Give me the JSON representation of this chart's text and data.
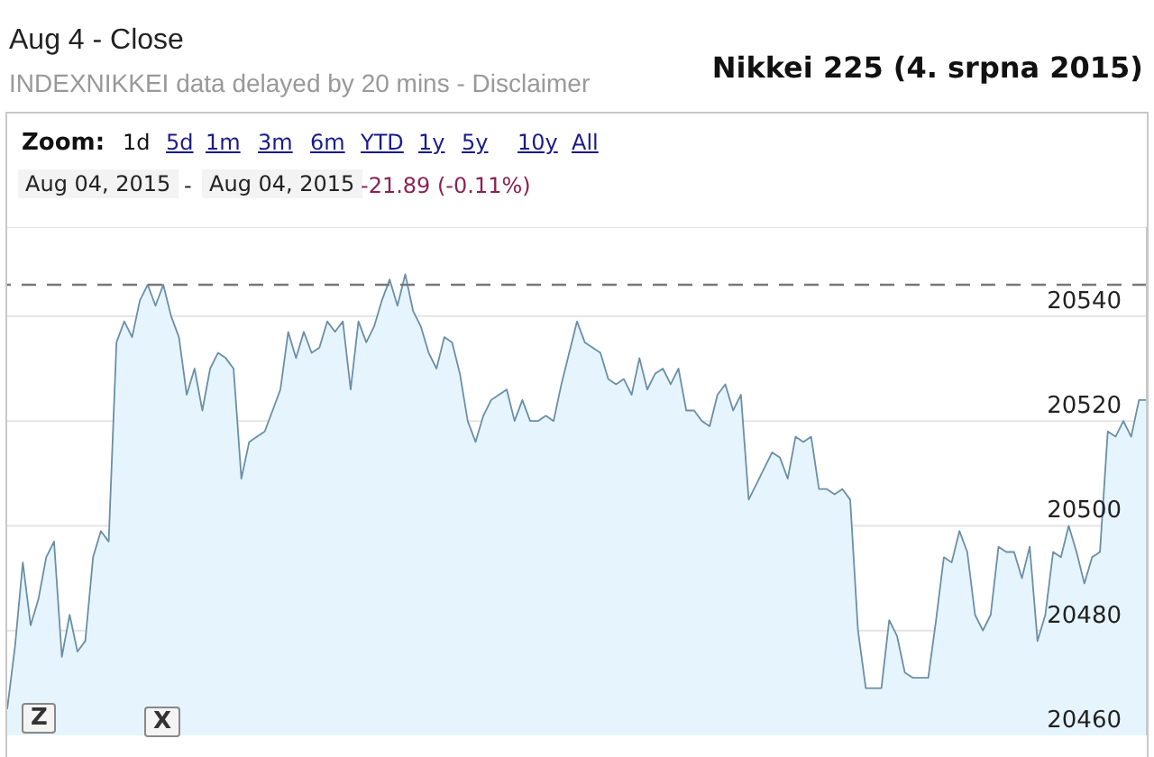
{
  "chart_data": {
    "type": "area",
    "title": "Nikkei 225 (4. srpna 2015)",
    "annotations": [
      "Aug 4 - Close",
      "INDEXNIKKEI data delayed by 20 mins - Disclaimer",
      "Zoom:",
      "1d",
      "5d",
      "1m",
      "3m",
      "6m",
      "YTD",
      "1y",
      "5y",
      "10y",
      "All",
      "Aug 04, 2015",
      "-",
      "Aug 04, 2015",
      "-21.89 (-0.11%)",
      "Z",
      "X"
    ],
    "series": [
      {
        "color": "#6a8fa8",
        "values": [
          20465,
          20477,
          20493,
          20481,
          20486,
          20494,
          20497,
          20475,
          20483,
          20476,
          20478,
          20494,
          20499,
          20497,
          20535,
          20539,
          20536,
          20543,
          20546,
          20542,
          20546,
          20540,
          20536,
          20525,
          20530,
          20522,
          20530,
          20533,
          20532,
          20530,
          20509,
          20516,
          20517,
          20518,
          20522,
          20526,
          20537,
          20532,
          20537,
          20533,
          20534,
          20539,
          20537,
          20539,
          20526,
          20539,
          20535,
          20538,
          20543,
          20547,
          20542,
          20548,
          20541,
          20538,
          20533,
          20530,
          20536,
          20535,
          20529,
          20520,
          20516,
          20521,
          20524,
          20525,
          20526,
          20520,
          20524,
          20520,
          20520,
          20521,
          20520,
          20527,
          20533,
          20539,
          20535,
          20534,
          20533,
          20528,
          20527,
          20528,
          20525,
          20532,
          20526,
          20529,
          20530,
          20527,
          20530,
          20522,
          20522,
          20520,
          20519,
          20525,
          20527,
          20522,
          20525,
          20505,
          20508,
          20511,
          20514,
          20513,
          20509,
          20517,
          20516,
          20517,
          20507,
          20507,
          20506,
          20507,
          20505,
          20480,
          20469,
          20469,
          20469,
          20482,
          20479,
          20472,
          20471,
          20471,
          20471,
          20482,
          20494,
          20493,
          20499,
          20495,
          20483,
          20480,
          20483,
          20496,
          20495,
          20495,
          20490,
          20496,
          20478,
          20483,
          20495,
          20494,
          20500,
          20495,
          20489,
          20494,
          20495,
          20518,
          20517,
          20520,
          20517,
          20524,
          20524
        ]
      }
    ],
    "categories": [
      null,
      null,
      null,
      null,
      null,
      null,
      null,
      null,
      null,
      null,
      null,
      null,
      null,
      null,
      null,
      null,
      null,
      null,
      null,
      null,
      null,
      null,
      null,
      null,
      null,
      null,
      null,
      null,
      null,
      null,
      null,
      null,
      null,
      null,
      null,
      null,
      null,
      null,
      null,
      null,
      null,
      null,
      null,
      null,
      null,
      null,
      null,
      null,
      null,
      null,
      null,
      null,
      null,
      null,
      null,
      null,
      null,
      null,
      null,
      null,
      null,
      null,
      null,
      null,
      null,
      null,
      null,
      null,
      null,
      null,
      null,
      null,
      null,
      null,
      null,
      null,
      null,
      null,
      null,
      null,
      null,
      null,
      null,
      null,
      null,
      null,
      null,
      null,
      null,
      null,
      null,
      null,
      null,
      null,
      null,
      null,
      null,
      null,
      null,
      null,
      null,
      null,
      null,
      null,
      null,
      null,
      null,
      null,
      null,
      null,
      null,
      null,
      null,
      null,
      null,
      null,
      null,
      null,
      null,
      null,
      null,
      null,
      null,
      null,
      null,
      null,
      null,
      null,
      null,
      null,
      null,
      null,
      null,
      null,
      null,
      null,
      null,
      null,
      null,
      null,
      null,
      null,
      null,
      null,
      null,
      null,
      null
    ],
    "ylim": [
      20460,
      20557
    ],
    "yticks": [
      20460,
      20480,
      20500,
      20520,
      20540
    ],
    "grid": "y",
    "tick_labels": "y",
    "ref_lines": [
      {
        "axis": "y",
        "value": 20546,
        "color": "#777777",
        "line_style": "dashed"
      }
    ]
  }
}
